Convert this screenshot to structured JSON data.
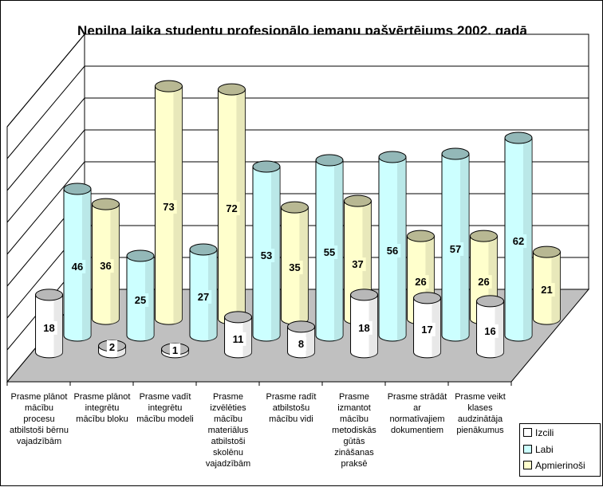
{
  "chart_data": {
    "type": "bar",
    "title": "Nepilna laika studentu profesionālo iemaņu pašvērtējums 2002. gadā",
    "xlabel": "",
    "ylabel": "",
    "ylim": [
      0,
      80
    ],
    "grid": true,
    "legend_position": "bottom-right",
    "categories": [
      "Prasme plānot mācību procesu atbilstoši bērnu vajadzībām",
      "Prasme plānot integrētu mācību bloku",
      "Prasme vadīt integrētu mācību modeli",
      "Prasme izvēlēties mācību materiālus atbilstoši skolēnu vajadzībām",
      "Prasme radīt atbilstošu mācību vidi",
      "Prasme izmantot mācību metodiskās gūtās zināšanas praksē",
      "Prasme strādāt ar normatīvajiem dokumentiem",
      "Prasme veikt klases audzinātāja pienākumus"
    ],
    "series": [
      {
        "name": "Izcili",
        "color": "#ffffff",
        "values": [
          18,
          2,
          1,
          11,
          8,
          18,
          17,
          16
        ]
      },
      {
        "name": "Labi",
        "color": "#ccffff",
        "values": [
          46,
          25,
          27,
          53,
          55,
          56,
          57,
          62
        ]
      },
      {
        "name": "Apmierinoši",
        "color": "#ffffcc",
        "values": [
          36,
          73,
          72,
          35,
          37,
          26,
          26,
          21
        ]
      }
    ]
  }
}
